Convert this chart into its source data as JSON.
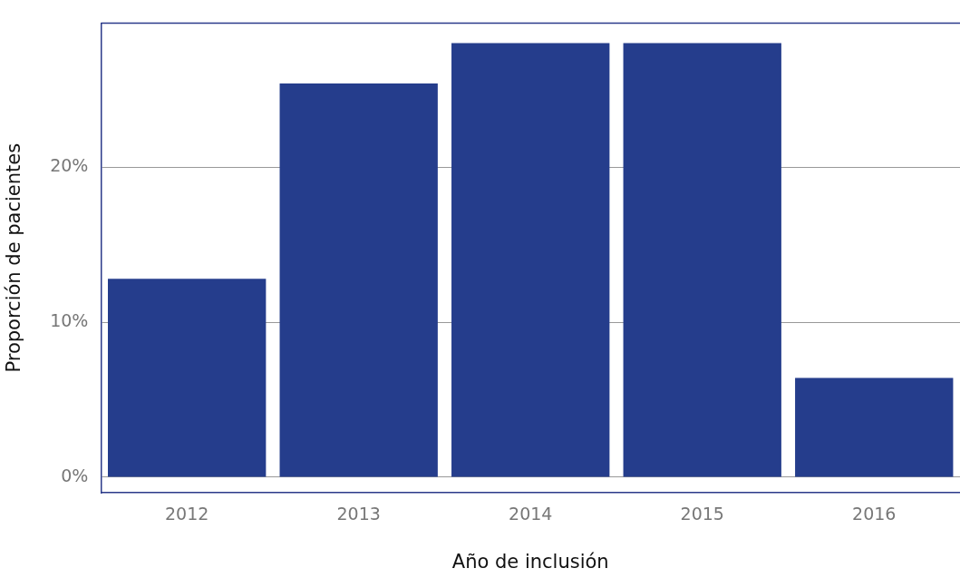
{
  "chart_data": {
    "type": "bar",
    "xlabel": "Año de inclusión",
    "ylabel": "Proporción de pacientes",
    "categories": [
      "2012",
      "2013",
      "2014",
      "2015",
      "2016"
    ],
    "values": [
      12.8,
      25.4,
      28.0,
      28.0,
      6.4
    ],
    "color": "#253d8c",
    "ylim": [
      -1,
      29.3
    ],
    "yticks": [
      {
        "value": 0,
        "label": "0%"
      },
      {
        "value": 10,
        "label": "10%"
      },
      {
        "value": 20,
        "label": "20%"
      }
    ],
    "grid": "y",
    "legend": false
  }
}
